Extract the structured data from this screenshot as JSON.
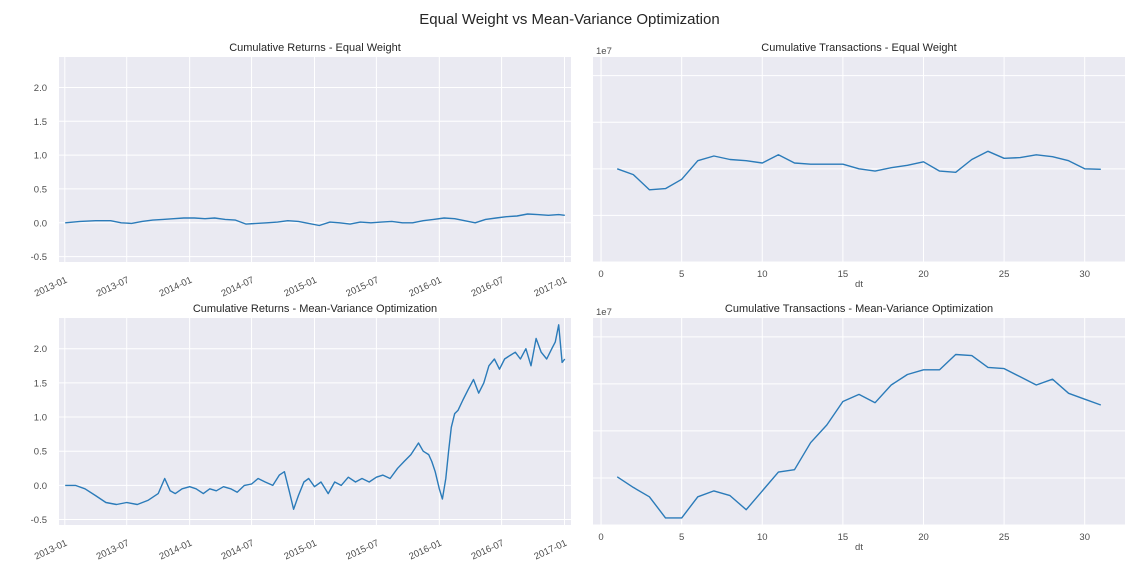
{
  "figure_title": "Equal Weight vs Mean-Variance Optimization",
  "colors": {
    "panel_bg": "#EAEAF2",
    "grid": "#FFFFFF",
    "line": "#2B7BB9",
    "text": "#262626"
  },
  "chart_data": [
    {
      "id": "ret_eq",
      "type": "line",
      "title": "Cumulative Returns - Equal Weight",
      "xlabel": "",
      "ylabel": "",
      "x_type": "date",
      "xlim": [
        "2012-12-15",
        "2017-01-20"
      ],
      "ylim": [
        -0.58,
        2.45
      ],
      "x_ticks": [
        "2013-01",
        "2013-07",
        "2014-01",
        "2014-07",
        "2015-01",
        "2015-07",
        "2016-01",
        "2016-07",
        "2017-01"
      ],
      "y_ticks": [
        -0.5,
        0.0,
        0.5,
        1.0,
        1.5,
        2.0
      ],
      "y_tick_labels": [
        "-0.5",
        "0.0",
        "0.5",
        "1.0",
        "1.5",
        "2.0"
      ],
      "grid": true,
      "series": [
        {
          "x": [
            "2013-01-02",
            "2013-02-15",
            "2013-04-01",
            "2013-05-15",
            "2013-06-15",
            "2013-07-15",
            "2013-08-15",
            "2013-09-15",
            "2013-10-15",
            "2013-11-15",
            "2013-12-15",
            "2014-01-15",
            "2014-02-15",
            "2014-03-15",
            "2014-04-15",
            "2014-05-15",
            "2014-06-15",
            "2014-07-15",
            "2014-08-15",
            "2014-09-15",
            "2014-10-15",
            "2014-11-15",
            "2014-12-15",
            "2015-01-15",
            "2015-02-15",
            "2015-03-15",
            "2015-04-15",
            "2015-05-15",
            "2015-06-15",
            "2015-07-15",
            "2015-08-15",
            "2015-09-15",
            "2015-10-15",
            "2015-11-15",
            "2015-12-15",
            "2016-01-15",
            "2016-02-15",
            "2016-03-15",
            "2016-04-15",
            "2016-05-15",
            "2016-06-15",
            "2016-07-15",
            "2016-08-15",
            "2016-09-15",
            "2016-10-15",
            "2016-11-15",
            "2016-12-15",
            "2017-01-02"
          ],
          "y": [
            0.0,
            0.02,
            0.03,
            0.03,
            0.0,
            -0.01,
            0.02,
            0.04,
            0.05,
            0.06,
            0.07,
            0.07,
            0.06,
            0.07,
            0.05,
            0.04,
            -0.02,
            -0.01,
            0.0,
            0.01,
            0.03,
            0.02,
            -0.01,
            -0.04,
            0.01,
            0.0,
            -0.02,
            0.01,
            0.0,
            0.01,
            0.02,
            0.0,
            0.0,
            0.03,
            0.05,
            0.07,
            0.06,
            0.03,
            0.0,
            0.05,
            0.07,
            0.09,
            0.1,
            0.13,
            0.12,
            0.11,
            0.12,
            0.11
          ]
        }
      ]
    },
    {
      "id": "tx_eq",
      "type": "line",
      "title": "Cumulative Transactions - Equal Weight",
      "xlabel": "dt",
      "ylabel": "",
      "offset_label": "1e7",
      "xlim": [
        -0.5,
        32.5
      ],
      "ylim": [
        0,
        8.8
      ],
      "x_ticks": [
        0,
        5,
        10,
        15,
        20,
        25,
        30
      ],
      "y_ticks": [
        0,
        2,
        4,
        6,
        8
      ],
      "grid": true,
      "series": [
        {
          "x": [
            1,
            2,
            3,
            4,
            5,
            6,
            7,
            8,
            9,
            10,
            11,
            12,
            13,
            14,
            15,
            16,
            17,
            18,
            19,
            20,
            21,
            22,
            23,
            24,
            25,
            26,
            27,
            28,
            29,
            30,
            31
          ],
          "y": [
            4.0,
            3.75,
            3.1,
            3.15,
            3.55,
            4.35,
            4.55,
            4.4,
            4.35,
            4.25,
            4.6,
            4.25,
            4.2,
            4.2,
            4.2,
            4.0,
            3.9,
            4.05,
            4.15,
            4.3,
            3.9,
            3.85,
            4.4,
            4.75,
            4.45,
            4.48,
            4.6,
            4.52,
            4.35,
            4.0,
            3.98
          ]
        }
      ]
    },
    {
      "id": "ret_mv",
      "type": "line",
      "title": "Cumulative Returns - Mean-Variance Optimization",
      "xlabel": "",
      "ylabel": "",
      "x_type": "date",
      "xlim": [
        "2012-12-15",
        "2017-01-20"
      ],
      "ylim": [
        -0.58,
        2.45
      ],
      "x_ticks": [
        "2013-01",
        "2013-07",
        "2014-01",
        "2014-07",
        "2015-01",
        "2015-07",
        "2016-01",
        "2016-07",
        "2017-01"
      ],
      "y_ticks": [
        -0.5,
        0.0,
        0.5,
        1.0,
        1.5,
        2.0
      ],
      "y_tick_labels": [
        "-0.5",
        "0.0",
        "0.5",
        "1.0",
        "1.5",
        "2.0"
      ],
      "grid": true,
      "series": [
        {
          "x": [
            "2013-01-02",
            "2013-02-01",
            "2013-03-01",
            "2013-04-01",
            "2013-05-01",
            "2013-06-01",
            "2013-07-01",
            "2013-08-01",
            "2013-09-01",
            "2013-10-01",
            "2013-10-20",
            "2013-11-05",
            "2013-11-20",
            "2013-12-10",
            "2014-01-01",
            "2014-01-20",
            "2014-02-10",
            "2014-03-01",
            "2014-03-20",
            "2014-04-10",
            "2014-05-01",
            "2014-05-20",
            "2014-06-10",
            "2014-07-01",
            "2014-07-20",
            "2014-08-10",
            "2014-09-01",
            "2014-09-20",
            "2014-10-05",
            "2014-10-20",
            "2014-11-01",
            "2014-11-15",
            "2014-12-01",
            "2014-12-15",
            "2015-01-01",
            "2015-01-20",
            "2015-02-10",
            "2015-03-01",
            "2015-03-20",
            "2015-04-10",
            "2015-05-01",
            "2015-05-20",
            "2015-06-10",
            "2015-07-01",
            "2015-07-20",
            "2015-08-10",
            "2015-09-01",
            "2015-09-20",
            "2015-10-10",
            "2015-11-01",
            "2015-11-15",
            "2015-12-01",
            "2015-12-10",
            "2015-12-20",
            "2016-01-01",
            "2016-01-10",
            "2016-01-20",
            "2016-01-28",
            "2016-02-05",
            "2016-02-15",
            "2016-02-25",
            "2016-03-10",
            "2016-03-25",
            "2016-04-10",
            "2016-04-25",
            "2016-05-10",
            "2016-05-25",
            "2016-06-10",
            "2016-06-25",
            "2016-07-10",
            "2016-07-25",
            "2016-08-10",
            "2016-08-25",
            "2016-09-10",
            "2016-09-25",
            "2016-10-10",
            "2016-10-25",
            "2016-11-10",
            "2016-11-25",
            "2016-12-05",
            "2016-12-15",
            "2016-12-25",
            "2017-01-02"
          ],
          "y": [
            0.0,
            0.0,
            -0.05,
            -0.15,
            -0.25,
            -0.28,
            -0.25,
            -0.28,
            -0.22,
            -0.12,
            0.1,
            -0.08,
            -0.12,
            -0.05,
            -0.02,
            -0.05,
            -0.12,
            -0.05,
            -0.08,
            -0.02,
            -0.05,
            -0.1,
            0.0,
            0.02,
            0.1,
            0.05,
            0.0,
            0.15,
            0.2,
            -0.1,
            -0.35,
            -0.15,
            0.05,
            0.1,
            -0.02,
            0.05,
            -0.12,
            0.05,
            0.0,
            0.12,
            0.05,
            0.1,
            0.05,
            0.12,
            0.15,
            0.1,
            0.25,
            0.35,
            0.45,
            0.62,
            0.5,
            0.45,
            0.35,
            0.2,
            -0.05,
            -0.2,
            0.1,
            0.5,
            0.85,
            1.05,
            1.1,
            1.25,
            1.4,
            1.55,
            1.35,
            1.5,
            1.75,
            1.85,
            1.7,
            1.85,
            1.9,
            1.95,
            1.85,
            2.0,
            1.75,
            2.15,
            1.95,
            1.85,
            2.0,
            2.1,
            2.35,
            1.8,
            1.85
          ]
        }
      ]
    },
    {
      "id": "tx_mv",
      "type": "line",
      "title": "Cumulative Transactions - Mean-Variance Optimization",
      "xlabel": "dt",
      "ylabel": "",
      "offset_label": "1e7",
      "xlim": [
        -0.5,
        32.5
      ],
      "ylim": [
        0,
        8.8
      ],
      "x_ticks": [
        0,
        5,
        10,
        15,
        20,
        25,
        30
      ],
      "y_ticks": [
        0,
        2,
        4,
        6,
        8
      ],
      "grid": true,
      "series": [
        {
          "x": [
            1,
            2,
            3,
            4,
            5,
            6,
            7,
            8,
            9,
            10,
            11,
            12,
            13,
            14,
            15,
            16,
            17,
            18,
            19,
            20,
            21,
            22,
            23,
            24,
            25,
            26,
            27,
            28,
            29,
            30,
            31
          ],
          "y": [
            2.05,
            1.6,
            1.2,
            0.3,
            0.3,
            1.2,
            1.45,
            1.25,
            0.65,
            1.45,
            2.25,
            2.35,
            3.5,
            4.25,
            5.25,
            5.55,
            5.2,
            5.95,
            6.4,
            6.6,
            6.6,
            7.25,
            7.2,
            6.7,
            6.65,
            6.3,
            5.95,
            6.2,
            5.6,
            5.35,
            5.1
          ]
        }
      ]
    }
  ]
}
